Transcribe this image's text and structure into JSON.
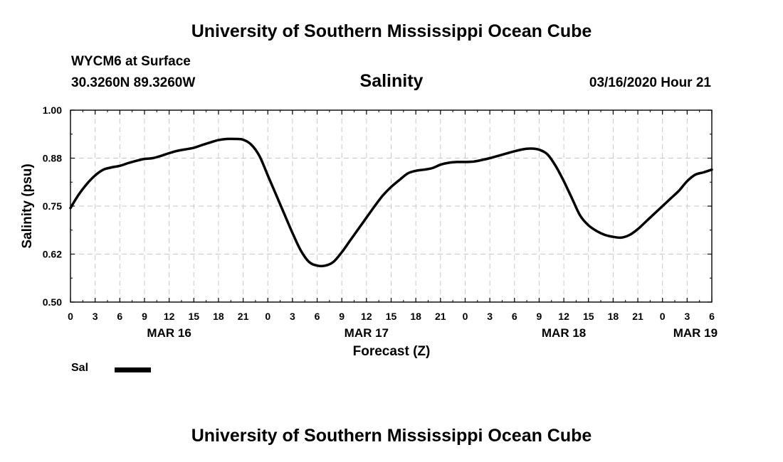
{
  "header": {
    "top_title": "University of Southern Mississippi Ocean Cube",
    "station": "WYCM6 at Surface",
    "coords": "30.3260N 89.3260W",
    "datetime": "03/16/2020 Hour 21",
    "bottom_title": "University of Southern Mississippi Ocean Cube"
  },
  "chart_data": {
    "type": "line",
    "title": "Salinity",
    "xlabel": "Forecast (Z)",
    "ylabel": "Salinity (psu)",
    "xlim": [
      0,
      78
    ],
    "ylim": [
      0.5,
      1.0
    ],
    "grid": true,
    "line_color": "#000000",
    "grid_color": "#c8c8c8",
    "yticks": [
      {
        "value": 0.5,
        "label": "0.50"
      },
      {
        "value": 0.625,
        "label": "0.62"
      },
      {
        "value": 0.75,
        "label": "0.75"
      },
      {
        "value": 0.875,
        "label": "0.88"
      },
      {
        "value": 1.0,
        "label": "1.00"
      }
    ],
    "xticks": [
      {
        "hour": 0,
        "label": "0"
      },
      {
        "hour": 3,
        "label": "3"
      },
      {
        "hour": 6,
        "label": "6"
      },
      {
        "hour": 9,
        "label": "9"
      },
      {
        "hour": 12,
        "label": "12"
      },
      {
        "hour": 15,
        "label": "15"
      },
      {
        "hour": 18,
        "label": "18"
      },
      {
        "hour": 21,
        "label": "21"
      },
      {
        "hour": 24,
        "label": "0"
      },
      {
        "hour": 27,
        "label": "3"
      },
      {
        "hour": 30,
        "label": "6"
      },
      {
        "hour": 33,
        "label": "9"
      },
      {
        "hour": 36,
        "label": "12"
      },
      {
        "hour": 39,
        "label": "15"
      },
      {
        "hour": 42,
        "label": "18"
      },
      {
        "hour": 45,
        "label": "21"
      },
      {
        "hour": 48,
        "label": "0"
      },
      {
        "hour": 51,
        "label": "3"
      },
      {
        "hour": 54,
        "label": "6"
      },
      {
        "hour": 57,
        "label": "9"
      },
      {
        "hour": 60,
        "label": "12"
      },
      {
        "hour": 63,
        "label": "15"
      },
      {
        "hour": 66,
        "label": "18"
      },
      {
        "hour": 69,
        "label": "21"
      },
      {
        "hour": 72,
        "label": "0"
      },
      {
        "hour": 75,
        "label": "3"
      },
      {
        "hour": 78,
        "label": "6"
      }
    ],
    "date_labels": [
      {
        "hour": 12,
        "label": "MAR 16"
      },
      {
        "hour": 36,
        "label": "MAR 17"
      },
      {
        "hour": 60,
        "label": "MAR 18"
      },
      {
        "hour": 76,
        "label": "MAR 19"
      }
    ],
    "series": [
      {
        "name": "Sal",
        "x": [
          0,
          1,
          2,
          3,
          4,
          5,
          6,
          7,
          8,
          9,
          10,
          11,
          12,
          13,
          14,
          15,
          16,
          17,
          18,
          19,
          20,
          21,
          22,
          23,
          24,
          25,
          26,
          27,
          28,
          29,
          30,
          31,
          32,
          33,
          34,
          35,
          36,
          37,
          38,
          39,
          40,
          41,
          42,
          43,
          44,
          45,
          46,
          47,
          48,
          49,
          50,
          51,
          52,
          53,
          54,
          55,
          56,
          57,
          58,
          59,
          60,
          61,
          62,
          63,
          64,
          65,
          66,
          67,
          68,
          69,
          70,
          71,
          72,
          73,
          74,
          75,
          76,
          77,
          78
        ],
        "values": [
          0.745,
          0.78,
          0.808,
          0.83,
          0.845,
          0.851,
          0.855,
          0.862,
          0.868,
          0.873,
          0.875,
          0.881,
          0.888,
          0.894,
          0.898,
          0.902,
          0.909,
          0.916,
          0.922,
          0.925,
          0.925,
          0.923,
          0.91,
          0.88,
          0.83,
          0.78,
          0.73,
          0.68,
          0.635,
          0.605,
          0.595,
          0.595,
          0.605,
          0.63,
          0.66,
          0.69,
          0.72,
          0.75,
          0.778,
          0.8,
          0.818,
          0.835,
          0.842,
          0.845,
          0.849,
          0.858,
          0.863,
          0.865,
          0.865,
          0.866,
          0.87,
          0.875,
          0.881,
          0.887,
          0.893,
          0.898,
          0.9,
          0.897,
          0.885,
          0.855,
          0.815,
          0.77,
          0.725,
          0.7,
          0.685,
          0.675,
          0.67,
          0.668,
          0.675,
          0.69,
          0.71,
          0.73,
          0.75,
          0.77,
          0.79,
          0.815,
          0.832,
          0.838,
          0.845
        ]
      }
    ],
    "legend": {
      "label": "Sal",
      "position": "bottom-left"
    }
  }
}
